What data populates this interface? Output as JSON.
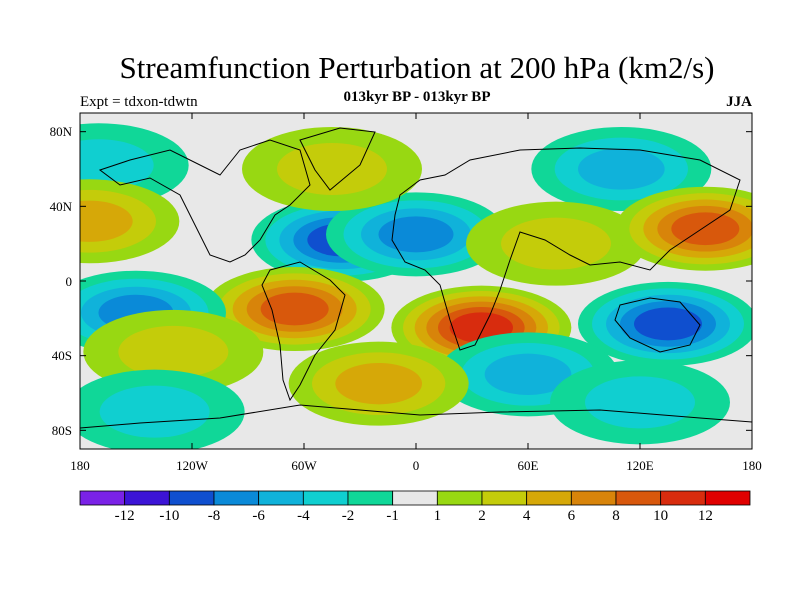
{
  "header": {
    "title": "Streamfunction Perturbation at 200 hPa (km2/s)",
    "subtitle": "013kyr BP - 013kyr BP",
    "left_label": "Expt = tdxon-tdwtn",
    "right_label": "JJA"
  },
  "chart_data": {
    "type": "heatmap",
    "xticks": [
      "180",
      "120W",
      "60W",
      "0",
      "60E",
      "120E",
      "180"
    ],
    "yticks": [
      "80N",
      "40N",
      "0",
      "40S",
      "80S"
    ],
    "xlim": [
      -180,
      180
    ],
    "ylim": [
      -90,
      90
    ],
    "colorbar": {
      "labels": [
        "-12",
        "-10",
        "-8",
        "-6",
        "-4",
        "-2",
        "-1",
        "1",
        "2",
        "4",
        "6",
        "8",
        "10",
        "12"
      ],
      "colors": [
        "#7a22e6",
        "#3c14d6",
        "#0f4fcf",
        "#0a8ad8",
        "#10b2da",
        "#10cfd0",
        "#10d798",
        "#e8e8e8",
        "#98d812",
        "#c4cc0a",
        "#d6a808",
        "#d8840a",
        "#d8580c",
        "#d82c0e",
        "#e00000"
      ]
    },
    "anomalies": [
      {
        "lon": -40,
        "lat": 22,
        "value": -8
      },
      {
        "lon": 0,
        "lat": 25,
        "value": -6
      },
      {
        "lon": -45,
        "lat": 60,
        "value": 2
      },
      {
        "lon": -170,
        "lat": 62,
        "value": -2
      },
      {
        "lon": 110,
        "lat": 60,
        "value": -4
      },
      {
        "lon": 75,
        "lat": 20,
        "value": 2
      },
      {
        "lon": 155,
        "lat": 28,
        "value": 8
      },
      {
        "lon": -175,
        "lat": 32,
        "value": 4
      },
      {
        "lon": -65,
        "lat": -15,
        "value": 8
      },
      {
        "lon": 35,
        "lat": -25,
        "value": 10
      },
      {
        "lon": -150,
        "lat": -17,
        "value": -6
      },
      {
        "lon": 135,
        "lat": -23,
        "value": -8
      },
      {
        "lon": -130,
        "lat": -38,
        "value": 2
      },
      {
        "lon": 60,
        "lat": -50,
        "value": -4
      },
      {
        "lon": -140,
        "lat": -70,
        "value": -2
      },
      {
        "lon": 120,
        "lat": -65,
        "value": -2
      },
      {
        "lon": -20,
        "lat": -55,
        "value": 4
      }
    ]
  }
}
